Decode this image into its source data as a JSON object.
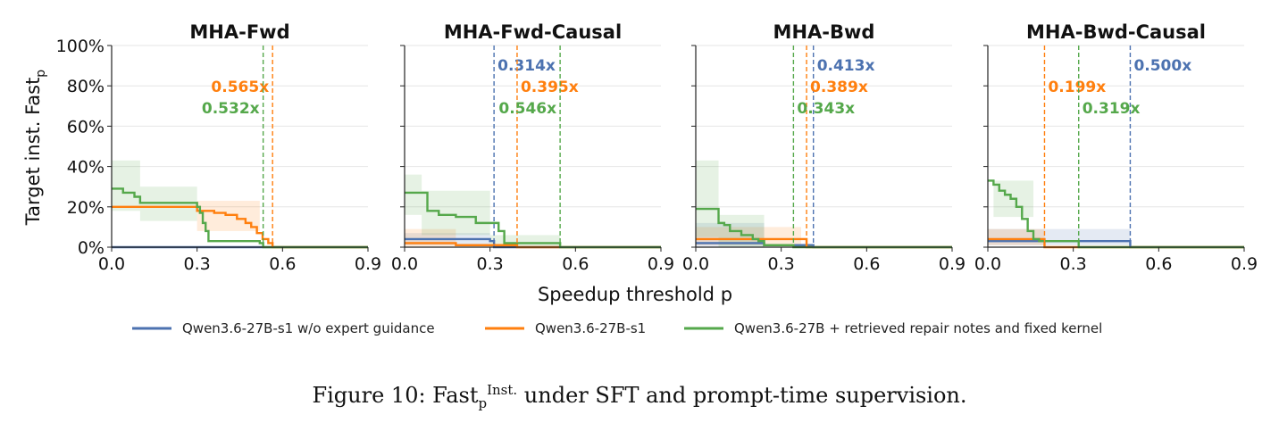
{
  "figure": {
    "ylabel_main": "Target inst. Fast",
    "ylabel_sub": "p",
    "xlabel": "Speedup threshold p",
    "caption": {
      "prefix": "Figure 10: Fast",
      "sub": "p",
      "sup": "Inst.",
      "suffix": " under SFT and prompt-time supervision."
    },
    "legend": [
      {
        "label": "Qwen3.6-27B-s1 w/o expert guidance",
        "color": "#4c72b0"
      },
      {
        "label": "Qwen3.6-27B-s1",
        "color": "#ff7f0e"
      },
      {
        "label": "Qwen3.6-27B + retrieved repair notes and fixed kernel",
        "color": "#55a84b"
      }
    ],
    "yticks": [
      "0%",
      "20%",
      "40%",
      "60%",
      "80%",
      "100%"
    ],
    "xticks": [
      "0.0",
      "0.3",
      "0.6",
      "0.9"
    ]
  },
  "chart_data": [
    {
      "type": "line",
      "title": "MHA-Fwd",
      "xlim": [
        0,
        0.9
      ],
      "ylim": [
        0,
        100
      ],
      "xlabel": "Speedup threshold p",
      "ylabel": "Target inst. Fast_p",
      "grid": true,
      "series": [
        {
          "name": "Qwen3.6-27B-s1 w/o expert guidance",
          "color": "#4c72b0",
          "x": [
            0,
            0.9
          ],
          "y": [
            0,
            0
          ],
          "band": []
        },
        {
          "name": "Qwen3.6-27B-s1",
          "color": "#ff7f0e",
          "x": [
            0,
            0.28,
            0.3,
            0.32,
            0.36,
            0.4,
            0.44,
            0.47,
            0.49,
            0.51,
            0.53,
            0.55,
            0.565
          ],
          "y": [
            20,
            20,
            18,
            18,
            17,
            16,
            14,
            12,
            10,
            7,
            4,
            2,
            0
          ],
          "band": [
            [
              0.3,
              0.52,
              8,
              23
            ]
          ]
        },
        {
          "name": "Qwen3.6-27B + retrieved repair notes and fixed kernel",
          "color": "#55a84b",
          "x": [
            0,
            0.02,
            0.04,
            0.08,
            0.1,
            0.3,
            0.31,
            0.32,
            0.33,
            0.34,
            0.5,
            0.52,
            0.532
          ],
          "y": [
            29,
            29,
            27,
            25,
            22,
            20,
            17,
            12,
            8,
            3,
            3,
            2,
            0
          ],
          "band": [
            [
              0,
              0.1,
              18,
              43
            ],
            [
              0.1,
              0.3,
              13,
              30
            ]
          ]
        }
      ],
      "vlines": [
        {
          "x": 0.565,
          "label": "0.565x",
          "color": "#ff7f0e",
          "row": 2,
          "side": "left"
        },
        {
          "x": 0.532,
          "label": "0.532x",
          "color": "#55a84b",
          "row": 3,
          "side": "left"
        }
      ]
    },
    {
      "type": "line",
      "title": "MHA-Fwd-Causal",
      "xlim": [
        0,
        0.9
      ],
      "ylim": [
        0,
        100
      ],
      "grid": true,
      "series": [
        {
          "name": "Qwen3.6-27B-s1 w/o expert guidance",
          "color": "#4c72b0",
          "x": [
            0,
            0.28,
            0.3,
            0.314
          ],
          "y": [
            4,
            4,
            3,
            0
          ],
          "band": [
            [
              0,
              0.3,
              1,
              7
            ]
          ]
        },
        {
          "name": "Qwen3.6-27B-s1",
          "color": "#ff7f0e",
          "x": [
            0,
            0.17,
            0.18,
            0.395
          ],
          "y": [
            2,
            2,
            1,
            0
          ],
          "band": [
            [
              0,
              0.18,
              0,
              9
            ]
          ]
        },
        {
          "name": "Qwen3.6-27B + retrieved repair notes and fixed kernel",
          "color": "#55a84b",
          "x": [
            0,
            0.06,
            0.08,
            0.12,
            0.18,
            0.25,
            0.3,
            0.33,
            0.35,
            0.55,
            0.546
          ],
          "y": [
            27,
            27,
            18,
            16,
            15,
            12,
            12,
            8,
            2,
            2,
            0
          ],
          "band": [
            [
              0,
              0.06,
              16,
              36
            ],
            [
              0.06,
              0.3,
              6,
              28
            ],
            [
              0.3,
              0.546,
              0,
              6
            ]
          ]
        }
      ],
      "vlines": [
        {
          "x": 0.314,
          "label": "0.314x",
          "color": "#4c72b0",
          "row": 1,
          "side": "right"
        },
        {
          "x": 0.395,
          "label": "0.395x",
          "color": "#ff7f0e",
          "row": 2,
          "side": "right"
        },
        {
          "x": 0.546,
          "label": "0.546x",
          "color": "#55a84b",
          "row": 3,
          "side": "left"
        }
      ]
    },
    {
      "type": "line",
      "title": "MHA-Bwd",
      "xlim": [
        0,
        0.9
      ],
      "ylim": [
        0,
        100
      ],
      "grid": true,
      "series": [
        {
          "name": "Qwen3.6-27B-s1 w/o expert guidance",
          "color": "#4c72b0",
          "x": [
            0,
            0.23,
            0.24,
            0.413
          ],
          "y": [
            2,
            2,
            1,
            0
          ],
          "band": [
            [
              0,
              0.24,
              0,
              12
            ]
          ]
        },
        {
          "name": "Qwen3.6-27B-s1",
          "color": "#ff7f0e",
          "x": [
            0,
            0.37,
            0.389
          ],
          "y": [
            4,
            4,
            0
          ],
          "band": [
            [
              0,
              0.37,
              1,
              10
            ]
          ]
        },
        {
          "name": "Qwen3.6-27B + retrieved repair notes and fixed kernel",
          "color": "#55a84b",
          "x": [
            0,
            0.06,
            0.08,
            0.1,
            0.12,
            0.16,
            0.2,
            0.22,
            0.24,
            0.343
          ],
          "y": [
            19,
            19,
            12,
            11,
            8,
            6,
            4,
            3,
            1,
            0
          ],
          "band": [
            [
              0,
              0.08,
              5,
              43
            ],
            [
              0.08,
              0.24,
              0,
              16
            ]
          ]
        }
      ],
      "vlines": [
        {
          "x": 0.413,
          "label": "0.413x",
          "color": "#4c72b0",
          "row": 1,
          "side": "right"
        },
        {
          "x": 0.389,
          "label": "0.389x",
          "color": "#ff7f0e",
          "row": 2,
          "side": "right"
        },
        {
          "x": 0.343,
          "label": "0.343x",
          "color": "#55a84b",
          "row": 3,
          "side": "right"
        }
      ]
    },
    {
      "type": "line",
      "title": "MHA-Bwd-Causal",
      "xlim": [
        0,
        0.9
      ],
      "ylim": [
        0,
        100
      ],
      "grid": true,
      "series": [
        {
          "name": "Qwen3.6-27B-s1 w/o expert guidance",
          "color": "#4c72b0",
          "x": [
            0,
            0.48,
            0.5
          ],
          "y": [
            3,
            3,
            0
          ],
          "band": [
            [
              0,
              0.5,
              1,
              9
            ]
          ]
        },
        {
          "name": "Qwen3.6-27B-s1",
          "color": "#ff7f0e",
          "x": [
            0,
            0.17,
            0.199
          ],
          "y": [
            4,
            4,
            0
          ],
          "band": [
            [
              0,
              0.2,
              1,
              9
            ]
          ]
        },
        {
          "name": "Qwen3.6-27B + retrieved repair notes and fixed kernel",
          "color": "#55a84b",
          "x": [
            0,
            0.02,
            0.04,
            0.06,
            0.08,
            0.1,
            0.12,
            0.14,
            0.16,
            0.18,
            0.2,
            0.319
          ],
          "y": [
            33,
            31,
            28,
            26,
            24,
            20,
            14,
            8,
            4,
            3,
            3,
            0
          ],
          "band": [
            [
              0.02,
              0.16,
              15,
              33
            ]
          ]
        }
      ],
      "vlines": [
        {
          "x": 0.5,
          "label": "0.500x",
          "color": "#4c72b0",
          "row": 1,
          "side": "right"
        },
        {
          "x": 0.199,
          "label": "0.199x",
          "color": "#ff7f0e",
          "row": 2,
          "side": "right"
        },
        {
          "x": 0.319,
          "label": "0.319x",
          "color": "#55a84b",
          "row": 3,
          "side": "right"
        }
      ]
    }
  ]
}
